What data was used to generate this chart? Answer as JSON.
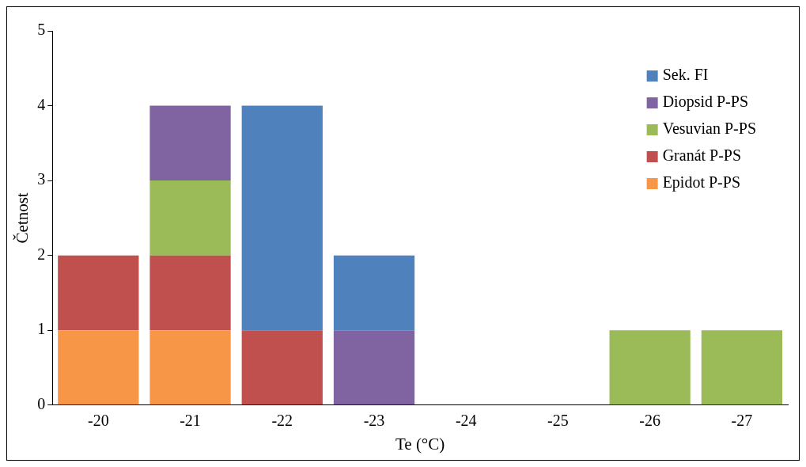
{
  "chart_data": {
    "type": "bar",
    "xlabel": "Te (°C)",
    "ylabel": "Četnost",
    "categories": [
      "-20",
      "-21",
      "-22",
      "-23",
      "-24",
      "-25",
      "-26",
      "-27"
    ],
    "stacked": true,
    "series": [
      {
        "name": "Epidot P-PS",
        "color": "#f79646",
        "values": [
          1,
          1,
          0,
          0,
          0,
          0,
          0,
          0
        ]
      },
      {
        "name": "Granát P-PS",
        "color": "#c0504d",
        "values": [
          1,
          1,
          1,
          0,
          0,
          0,
          0,
          0
        ]
      },
      {
        "name": "Vesuvian P-PS",
        "color": "#9bbb59",
        "values": [
          0,
          1,
          0,
          0,
          0,
          0,
          1,
          1
        ]
      },
      {
        "name": "Diopsid P-PS",
        "color": "#8064a2",
        "values": [
          0,
          1,
          0,
          1,
          0,
          0,
          0,
          0
        ]
      },
      {
        "name": "Sek. FI",
        "color": "#4f81bd",
        "values": [
          0,
          0,
          3,
          1,
          0,
          0,
          0,
          0
        ]
      }
    ],
    "ylim": [
      0,
      5
    ],
    "yticks": [
      0,
      1,
      2,
      3,
      4,
      5
    ],
    "grid": false,
    "legend": "top right"
  }
}
